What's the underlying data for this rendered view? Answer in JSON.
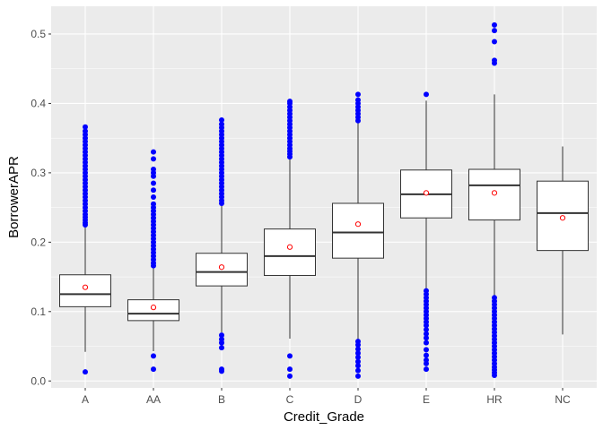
{
  "chart_data": {
    "type": "boxplot",
    "xlabel": "Credit_Grade",
    "ylabel": "BorrowerAPR",
    "ylim": [
      -0.01,
      0.54
    ],
    "yticks": [
      0.0,
      0.1,
      0.2,
      0.3,
      0.4,
      0.5
    ],
    "ytick_labels": [
      "0.0",
      "0.1",
      "0.2",
      "0.3",
      "0.4",
      "0.5"
    ],
    "categories": [
      "A",
      "AA",
      "B",
      "C",
      "D",
      "E",
      "HR",
      "NC"
    ],
    "grid": true,
    "background_color": "#ebebeb",
    "outlier_color": "#0000ff",
    "mean_marker_color": "#ff0000",
    "series": [
      {
        "category": "A",
        "whisker_low": 0.042,
        "q1": 0.107,
        "median": 0.125,
        "q3": 0.153,
        "whisker_high": 0.222,
        "mean": 0.135,
        "outliers": [
          0.013,
          0.225,
          0.228,
          0.232,
          0.236,
          0.24,
          0.245,
          0.25,
          0.255,
          0.26,
          0.265,
          0.27,
          0.275,
          0.28,
          0.285,
          0.29,
          0.295,
          0.3,
          0.305,
          0.31,
          0.315,
          0.32,
          0.325,
          0.33,
          0.335,
          0.34,
          0.345,
          0.35,
          0.355,
          0.36,
          0.366
        ]
      },
      {
        "category": "AA",
        "whisker_low": 0.043,
        "q1": 0.087,
        "median": 0.097,
        "q3": 0.117,
        "whisker_high": 0.163,
        "mean": 0.106,
        "outliers": [
          0.017,
          0.036,
          0.166,
          0.17,
          0.175,
          0.18,
          0.185,
          0.19,
          0.195,
          0.2,
          0.205,
          0.21,
          0.215,
          0.22,
          0.225,
          0.23,
          0.235,
          0.24,
          0.245,
          0.25,
          0.255,
          0.265,
          0.275,
          0.285,
          0.295,
          0.3,
          0.305,
          0.32,
          0.33
        ]
      },
      {
        "category": "B",
        "whisker_low": 0.07,
        "q1": 0.137,
        "median": 0.157,
        "q3": 0.184,
        "whisker_high": 0.253,
        "mean": 0.164,
        "outliers": [
          0.014,
          0.017,
          0.048,
          0.055,
          0.06,
          0.066,
          0.256,
          0.26,
          0.265,
          0.27,
          0.275,
          0.28,
          0.285,
          0.29,
          0.295,
          0.3,
          0.305,
          0.31,
          0.315,
          0.32,
          0.325,
          0.33,
          0.335,
          0.34,
          0.345,
          0.35,
          0.355,
          0.36,
          0.365,
          0.37,
          0.376
        ]
      },
      {
        "category": "C",
        "whisker_low": 0.061,
        "q1": 0.152,
        "median": 0.18,
        "q3": 0.219,
        "whisker_high": 0.32,
        "mean": 0.193,
        "outliers": [
          0.007,
          0.017,
          0.036,
          0.323,
          0.327,
          0.331,
          0.335,
          0.34,
          0.345,
          0.35,
          0.355,
          0.36,
          0.365,
          0.37,
          0.375,
          0.38,
          0.385,
          0.39,
          0.395,
          0.4,
          0.403
        ]
      },
      {
        "category": "D",
        "whisker_low": 0.058,
        "q1": 0.177,
        "median": 0.214,
        "q3": 0.256,
        "whisker_high": 0.372,
        "mean": 0.226,
        "outliers": [
          0.007,
          0.015,
          0.022,
          0.028,
          0.034,
          0.04,
          0.046,
          0.052,
          0.057,
          0.375,
          0.38,
          0.385,
          0.39,
          0.395,
          0.4,
          0.405,
          0.413
        ]
      },
      {
        "category": "E",
        "whisker_low": 0.133,
        "q1": 0.235,
        "median": 0.269,
        "q3": 0.304,
        "whisker_high": 0.404,
        "mean": 0.271,
        "outliers": [
          0.017,
          0.025,
          0.03,
          0.037,
          0.045,
          0.055,
          0.062,
          0.068,
          0.074,
          0.08,
          0.085,
          0.09,
          0.095,
          0.1,
          0.105,
          0.11,
          0.115,
          0.12,
          0.125,
          0.13,
          0.413
        ]
      },
      {
        "category": "HR",
        "whisker_low": 0.123,
        "q1": 0.232,
        "median": 0.282,
        "q3": 0.305,
        "whisker_high": 0.413,
        "mean": 0.271,
        "outliers": [
          0.008,
          0.012,
          0.016,
          0.02,
          0.025,
          0.03,
          0.035,
          0.04,
          0.045,
          0.05,
          0.055,
          0.06,
          0.065,
          0.07,
          0.075,
          0.08,
          0.085,
          0.09,
          0.095,
          0.1,
          0.105,
          0.11,
          0.115,
          0.12,
          0.458,
          0.462,
          0.489,
          0.505,
          0.513
        ]
      },
      {
        "category": "NC",
        "whisker_low": 0.067,
        "q1": 0.188,
        "median": 0.242,
        "q3": 0.288,
        "whisker_high": 0.338,
        "mean": 0.235,
        "outliers": []
      }
    ]
  }
}
